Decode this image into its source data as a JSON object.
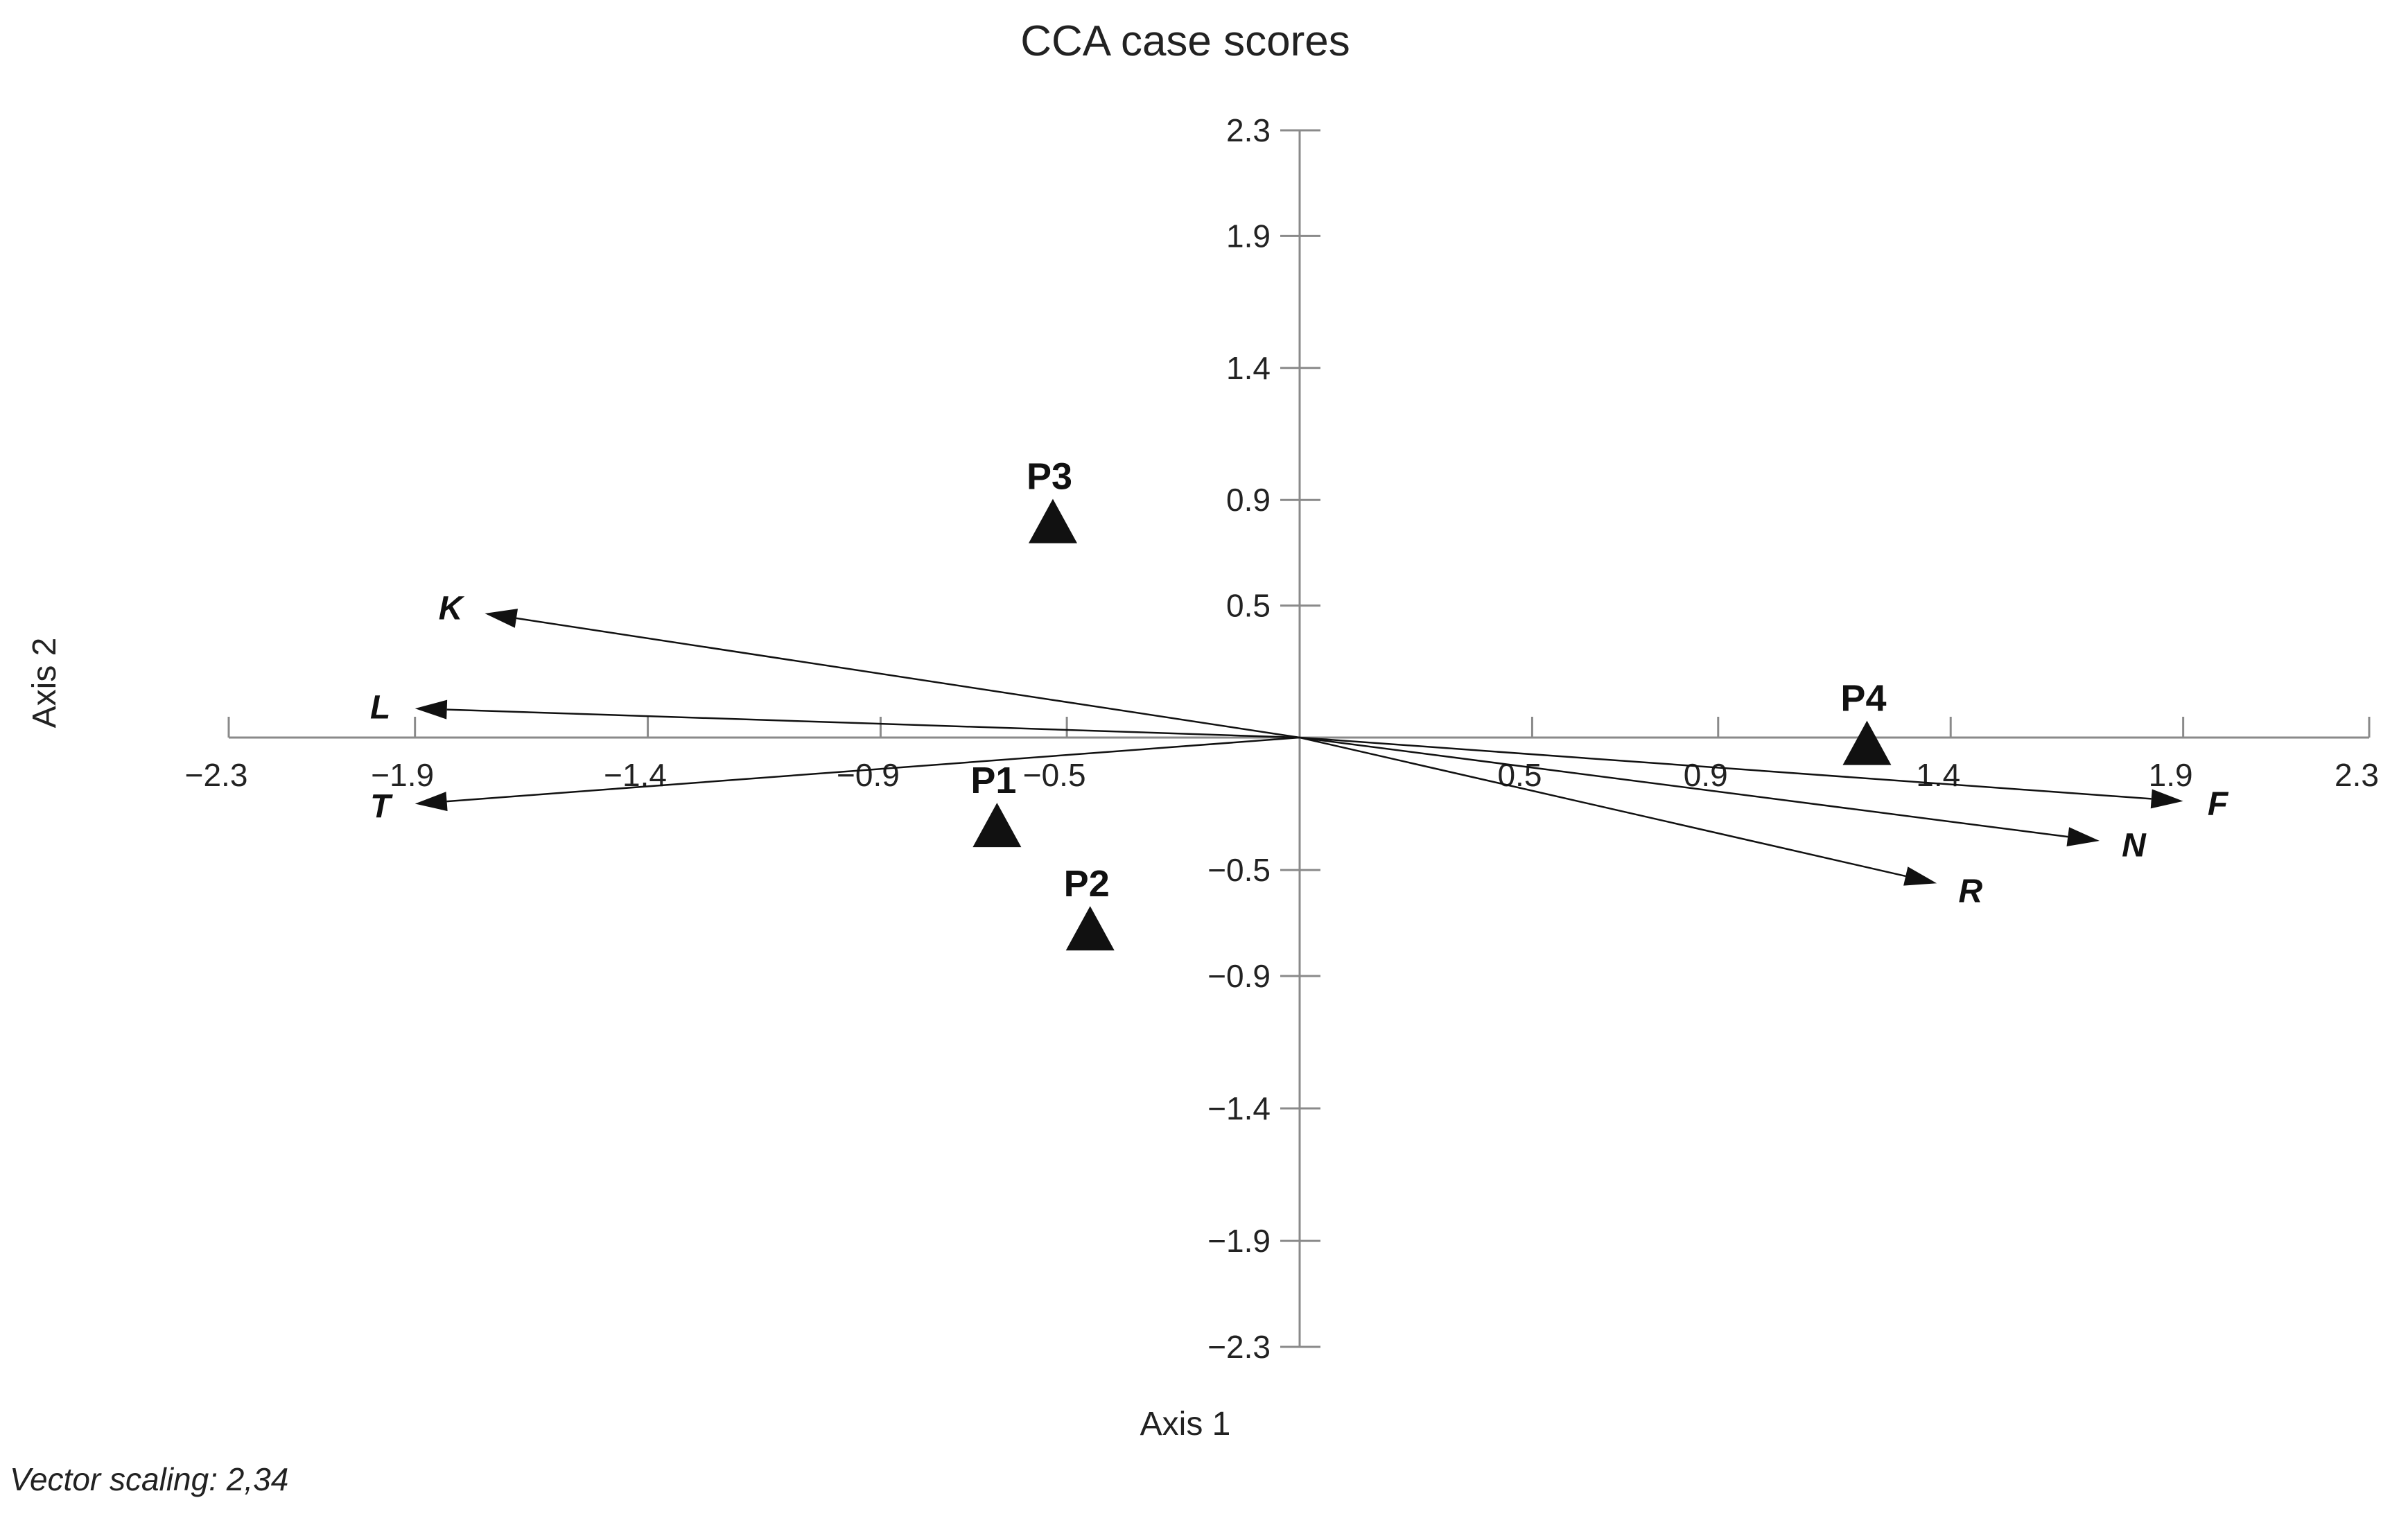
{
  "chart_data": {
    "type": "scatter",
    "title": "CCA case scores",
    "xlabel": "Axis 1",
    "ylabel": "Axis 2",
    "xlim": [
      -2.3,
      2.3
    ],
    "ylim": [
      -2.3,
      2.3
    ],
    "x_ticks": [
      -2.3,
      -1.9,
      -1.4,
      -0.9,
      -0.5,
      0.5,
      0.9,
      1.4,
      1.9,
      2.3
    ],
    "y_ticks": [
      2.3,
      1.9,
      1.4,
      0.9,
      0.5,
      -0.5,
      -0.9,
      -1.4,
      -1.9,
      -2.3
    ],
    "x_tick_labels": [
      "−2.3",
      "−1.9",
      "−1.4",
      "−0.9",
      "−0.5",
      "0.5",
      "0.9",
      "1.4",
      "1.9",
      "2.3"
    ],
    "y_tick_labels": [
      "2.3",
      "1.9",
      "1.4",
      "0.9",
      "0.5",
      "−0.5",
      "−0.9",
      "−1.4",
      "−1.9",
      "−2.3"
    ],
    "points": [
      {
        "label": "P1",
        "x": -0.65,
        "y": -0.33
      },
      {
        "label": "P2",
        "x": -0.45,
        "y": -0.72
      },
      {
        "label": "P3",
        "x": -0.53,
        "y": 0.82
      },
      {
        "label": "P4",
        "x": 1.22,
        "y": -0.02
      }
    ],
    "vectors": [
      {
        "label": "K",
        "x": -1.75,
        "y": 0.47
      },
      {
        "label": "L",
        "x": -1.9,
        "y": 0.11
      },
      {
        "label": "T",
        "x": -1.9,
        "y": -0.25
      },
      {
        "label": "F",
        "x": 1.9,
        "y": -0.24
      },
      {
        "label": "N",
        "x": 1.72,
        "y": -0.39
      },
      {
        "label": "R",
        "x": 1.37,
        "y": -0.55
      }
    ],
    "footnote": "Vector scaling: 2,34"
  }
}
